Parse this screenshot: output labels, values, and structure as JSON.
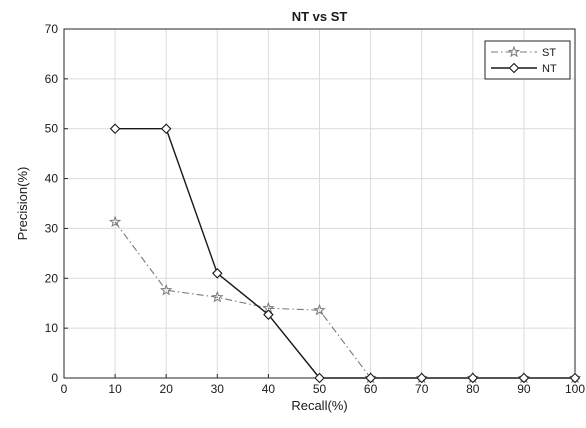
{
  "chart_data": {
    "type": "line",
    "title": "NT vs ST",
    "xlabel": "Recall(%)",
    "ylabel": "Precision(%)",
    "xlim": [
      0,
      100
    ],
    "ylim": [
      0,
      70
    ],
    "xticks": [
      0,
      10,
      20,
      30,
      40,
      50,
      60,
      70,
      80,
      90,
      100
    ],
    "yticks": [
      0,
      10,
      20,
      30,
      40,
      50,
      60,
      70
    ],
    "grid": true,
    "legend_position": "top-right",
    "series": [
      {
        "name": "ST",
        "line_style": "dash-dot",
        "marker": "star",
        "color": "#7a7a7a",
        "x": [
          10,
          20,
          30,
          40,
          50,
          60,
          70,
          80,
          90,
          100
        ],
        "y": [
          31.3,
          17.6,
          16.2,
          14.0,
          13.6,
          0,
          0,
          0,
          0,
          0
        ]
      },
      {
        "name": "NT",
        "line_style": "solid",
        "marker": "diamond",
        "color": "#1a1a1a",
        "x": [
          10,
          20,
          30,
          40,
          50,
          60,
          70,
          80,
          90,
          100
        ],
        "y": [
          50,
          50,
          21,
          12.7,
          0,
          0,
          0,
          0,
          0,
          0
        ]
      }
    ]
  }
}
